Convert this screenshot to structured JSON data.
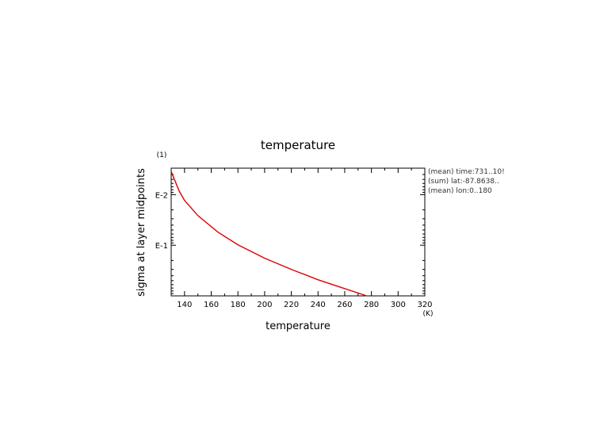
{
  "chart_data": {
    "type": "line",
    "title": "temperature",
    "xlabel": "temperature",
    "ylabel": "sigma at layer midpoints",
    "x_unit": "(K)",
    "y_unit": "(1)",
    "xlim": [
      130,
      320
    ],
    "ylim": [
      0.003,
      1
    ],
    "y_scale": "log",
    "y_reversed": true,
    "grid": false,
    "x_ticks": [
      140,
      160,
      180,
      200,
      220,
      240,
      260,
      280,
      300,
      320
    ],
    "x_tick_labels": [
      "140",
      "160",
      "180",
      "200",
      "220",
      "240",
      "260",
      "280",
      "300",
      "320"
    ],
    "y_ticks": [
      0.01,
      0.1
    ],
    "y_tick_labels": [
      "E-2",
      "E-1"
    ],
    "annotations": [
      "(mean) time:731..10!",
      "(sum) lat:-87.8638..",
      "(mean) lon:0..180"
    ],
    "series": [
      {
        "color": "#dd0000",
        "x": [
          130,
          136,
          140,
          150,
          165,
          180,
          200,
          220,
          240,
          255,
          276.5
        ],
        "y": [
          0.0035,
          0.0085,
          0.013,
          0.026,
          0.055,
          0.098,
          0.18,
          0.3,
          0.48,
          0.65,
          1.0
        ]
      }
    ]
  }
}
